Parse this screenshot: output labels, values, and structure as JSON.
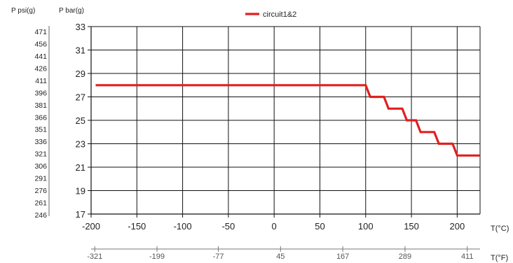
{
  "chart_data": {
    "type": "line",
    "axes": {
      "psi_label": "P psi(g)",
      "bar_label": "P bar(g)",
      "x_c_label": "T(°C)",
      "x_f_label": "T(°F)"
    },
    "legend": {
      "label": "circuit1&2",
      "placement": "top-center"
    },
    "grid": true,
    "xlim_c": [
      -200,
      225
    ],
    "ylim_bar": [
      17,
      33
    ],
    "y_ticks_bar": [
      17,
      19,
      21,
      23,
      25,
      27,
      29,
      31,
      33
    ],
    "x_ticks_c": [
      -200,
      -150,
      -100,
      -50,
      0,
      50,
      100,
      150,
      200
    ],
    "psi_ticks": [
      246,
      261,
      276,
      291,
      306,
      321,
      336,
      351,
      366,
      381,
      396,
      411,
      426,
      441,
      456,
      471
    ],
    "f_ticks": [
      {
        "label": "-321",
        "c": -196
      },
      {
        "label": "-199",
        "c": -128
      },
      {
        "label": "-77",
        "c": -61
      },
      {
        "label": "45",
        "c": 7
      },
      {
        "label": "167",
        "c": 75
      },
      {
        "label": "289",
        "c": 143
      },
      {
        "label": "411",
        "c": 211
      }
    ],
    "series": [
      {
        "name": "circuit1&2",
        "color": "#e02020",
        "points": [
          [
            -195,
            28
          ],
          [
            100,
            28
          ],
          [
            105,
            27
          ],
          [
            120,
            27
          ],
          [
            125,
            26
          ],
          [
            140,
            26
          ],
          [
            145,
            25
          ],
          [
            155,
            25
          ],
          [
            160,
            24
          ],
          [
            175,
            24
          ],
          [
            180,
            23
          ],
          [
            195,
            23
          ],
          [
            200,
            22
          ],
          [
            225,
            22
          ]
        ]
      }
    ]
  }
}
